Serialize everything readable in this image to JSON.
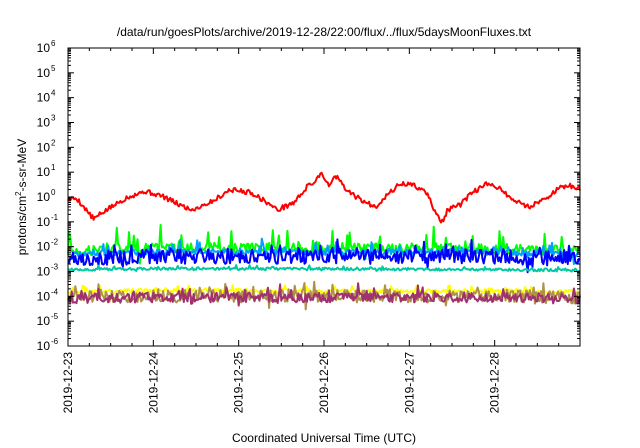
{
  "chart_data": {
    "type": "line",
    "title": "/data/run/goesPlots/archive/2019-12-28/22:00/flux/../flux/5daysMoonFluxes.txt",
    "xlabel": "Coordinated Universal Time (UTC)",
    "ylabel": {
      "prefix": "protons/cm",
      "sup": "2",
      "suffix": "-s-sr-MeV"
    },
    "yscale": "log",
    "ylim_exponents": [
      -6,
      6
    ],
    "ytick_labels": [
      {
        "base": "10",
        "exp": "-6"
      },
      {
        "base": "10",
        "exp": "-5"
      },
      {
        "base": "10",
        "exp": "-4"
      },
      {
        "base": "10",
        "exp": "-3"
      },
      {
        "base": "10",
        "exp": "-2"
      },
      {
        "base": "10",
        "exp": "-1"
      },
      {
        "base": "10",
        "exp": "0"
      },
      {
        "base": "10",
        "exp": "1"
      },
      {
        "base": "10",
        "exp": "2"
      },
      {
        "base": "10",
        "exp": "3"
      },
      {
        "base": "10",
        "exp": "4"
      },
      {
        "base": "10",
        "exp": "5"
      },
      {
        "base": "10",
        "exp": "6"
      }
    ],
    "xlim": [
      "2019-12-23",
      "2019-12-29"
    ],
    "xtick_labels": [
      "2019-12-23",
      "2019-12-24",
      "2019-12-25",
      "2019-12-26",
      "2019-12-27",
      "2019-12-28"
    ],
    "grid": false,
    "legend": "none",
    "series": [
      {
        "color": "#ff0000",
        "base": [
          [
            0,
            0.8
          ],
          [
            0.1,
            0.9
          ],
          [
            0.3,
            0.13
          ],
          [
            0.45,
            0.3
          ],
          [
            0.7,
            1.0
          ],
          [
            0.9,
            1.7
          ],
          [
            1.1,
            1.1
          ],
          [
            1.3,
            0.5
          ],
          [
            1.45,
            0.3
          ],
          [
            1.7,
            0.7
          ],
          [
            1.9,
            2.0
          ],
          [
            2.15,
            1.5
          ],
          [
            2.35,
            0.55
          ],
          [
            2.45,
            0.3
          ],
          [
            2.65,
            0.6
          ],
          [
            2.8,
            2.5
          ],
          [
            2.9,
            4.5
          ],
          [
            2.97,
            10
          ],
          [
            3.05,
            3
          ],
          [
            3.15,
            7
          ],
          [
            3.25,
            2
          ],
          [
            3.45,
            0.7
          ],
          [
            3.6,
            0.4
          ],
          [
            3.75,
            1.3
          ],
          [
            3.9,
            3.5
          ],
          [
            4.05,
            3
          ],
          [
            4.2,
            1.5
          ],
          [
            4.32,
            0.2
          ],
          [
            4.38,
            0.09
          ],
          [
            4.45,
            0.3
          ],
          [
            4.6,
            0.5
          ],
          [
            4.75,
            1.6
          ],
          [
            4.9,
            3.2
          ],
          [
            5.05,
            2.5
          ],
          [
            5.2,
            0.8
          ],
          [
            5.4,
            0.4
          ],
          [
            5.6,
            0.9
          ],
          [
            5.75,
            2.2
          ],
          [
            5.9,
            2.8
          ],
          [
            6.0,
            2.0
          ]
        ],
        "jitter": 0.1,
        "spikes": 0
      },
      {
        "color": "#00ff00",
        "base": [
          [
            0,
            0.006
          ],
          [
            0.4,
            0.008
          ],
          [
            1.0,
            0.009
          ],
          [
            2.0,
            0.009
          ],
          [
            3.0,
            0.009
          ],
          [
            4.0,
            0.009
          ],
          [
            5.0,
            0.008
          ],
          [
            6.0,
            0.007
          ]
        ],
        "jitter": 0.2,
        "spikes": 0.75,
        "seed": 7
      },
      {
        "color": "#00a0ff",
        "base": [
          [
            0,
            0.005
          ],
          [
            1.0,
            0.006
          ],
          [
            2.0,
            0.006
          ],
          [
            3.0,
            0.006
          ],
          [
            4.0,
            0.006
          ],
          [
            5.0,
            0.006
          ],
          [
            6.0,
            0.005
          ]
        ],
        "jitter": 0.12,
        "spikes": 0.45,
        "seed": 11
      },
      {
        "color": "#0000ff",
        "base": [
          [
            0,
            0.003
          ],
          [
            1.0,
            0.004
          ],
          [
            2.0,
            0.004
          ],
          [
            3.0,
            0.004
          ],
          [
            4.0,
            0.004
          ],
          [
            5.0,
            0.004
          ],
          [
            6.0,
            0.003
          ]
        ],
        "jitter": 0.3,
        "spikes": 0.5,
        "seed": 17
      },
      {
        "color": "#00c8a0",
        "base": [
          [
            0,
            0.0012
          ],
          [
            1.0,
            0.0013
          ],
          [
            2.0,
            0.0013
          ],
          [
            3.0,
            0.0013
          ],
          [
            4.0,
            0.0012
          ],
          [
            5.0,
            0.0012
          ],
          [
            6.0,
            0.0011
          ]
        ],
        "jitter": 0.05,
        "spikes": 0.1,
        "seed": 23
      },
      {
        "color": "#ffff00",
        "base": [
          [
            0,
            0.00015
          ],
          [
            1.0,
            0.00017
          ],
          [
            2.0,
            0.00017
          ],
          [
            3.0,
            0.00016
          ],
          [
            4.0,
            0.00016
          ],
          [
            5.0,
            0.00016
          ],
          [
            6.0,
            0.00015
          ]
        ],
        "jitter": 0.08,
        "spikes": 0.2,
        "seed": 31
      },
      {
        "color": "#b0904a",
        "base": [
          [
            0,
            9e-05
          ],
          [
            1.0,
            0.0001
          ],
          [
            2.0,
            0.0001
          ],
          [
            3.0,
            0.0001
          ],
          [
            4.0,
            0.0001
          ],
          [
            5.0,
            0.0001
          ],
          [
            6.0,
            9e-05
          ]
        ],
        "jitter": 0.25,
        "spikes": 0.45,
        "seed": 41
      },
      {
        "color": "#a0306e",
        "base": [
          [
            0,
            8e-05
          ],
          [
            1.0,
            9e-05
          ],
          [
            2.0,
            9e-05
          ],
          [
            3.0,
            9e-05
          ],
          [
            4.0,
            9e-05
          ],
          [
            5.0,
            9e-05
          ],
          [
            6.0,
            8e-05
          ]
        ],
        "jitter": 0.2,
        "spikes": 0.4,
        "seed": 53
      }
    ]
  }
}
